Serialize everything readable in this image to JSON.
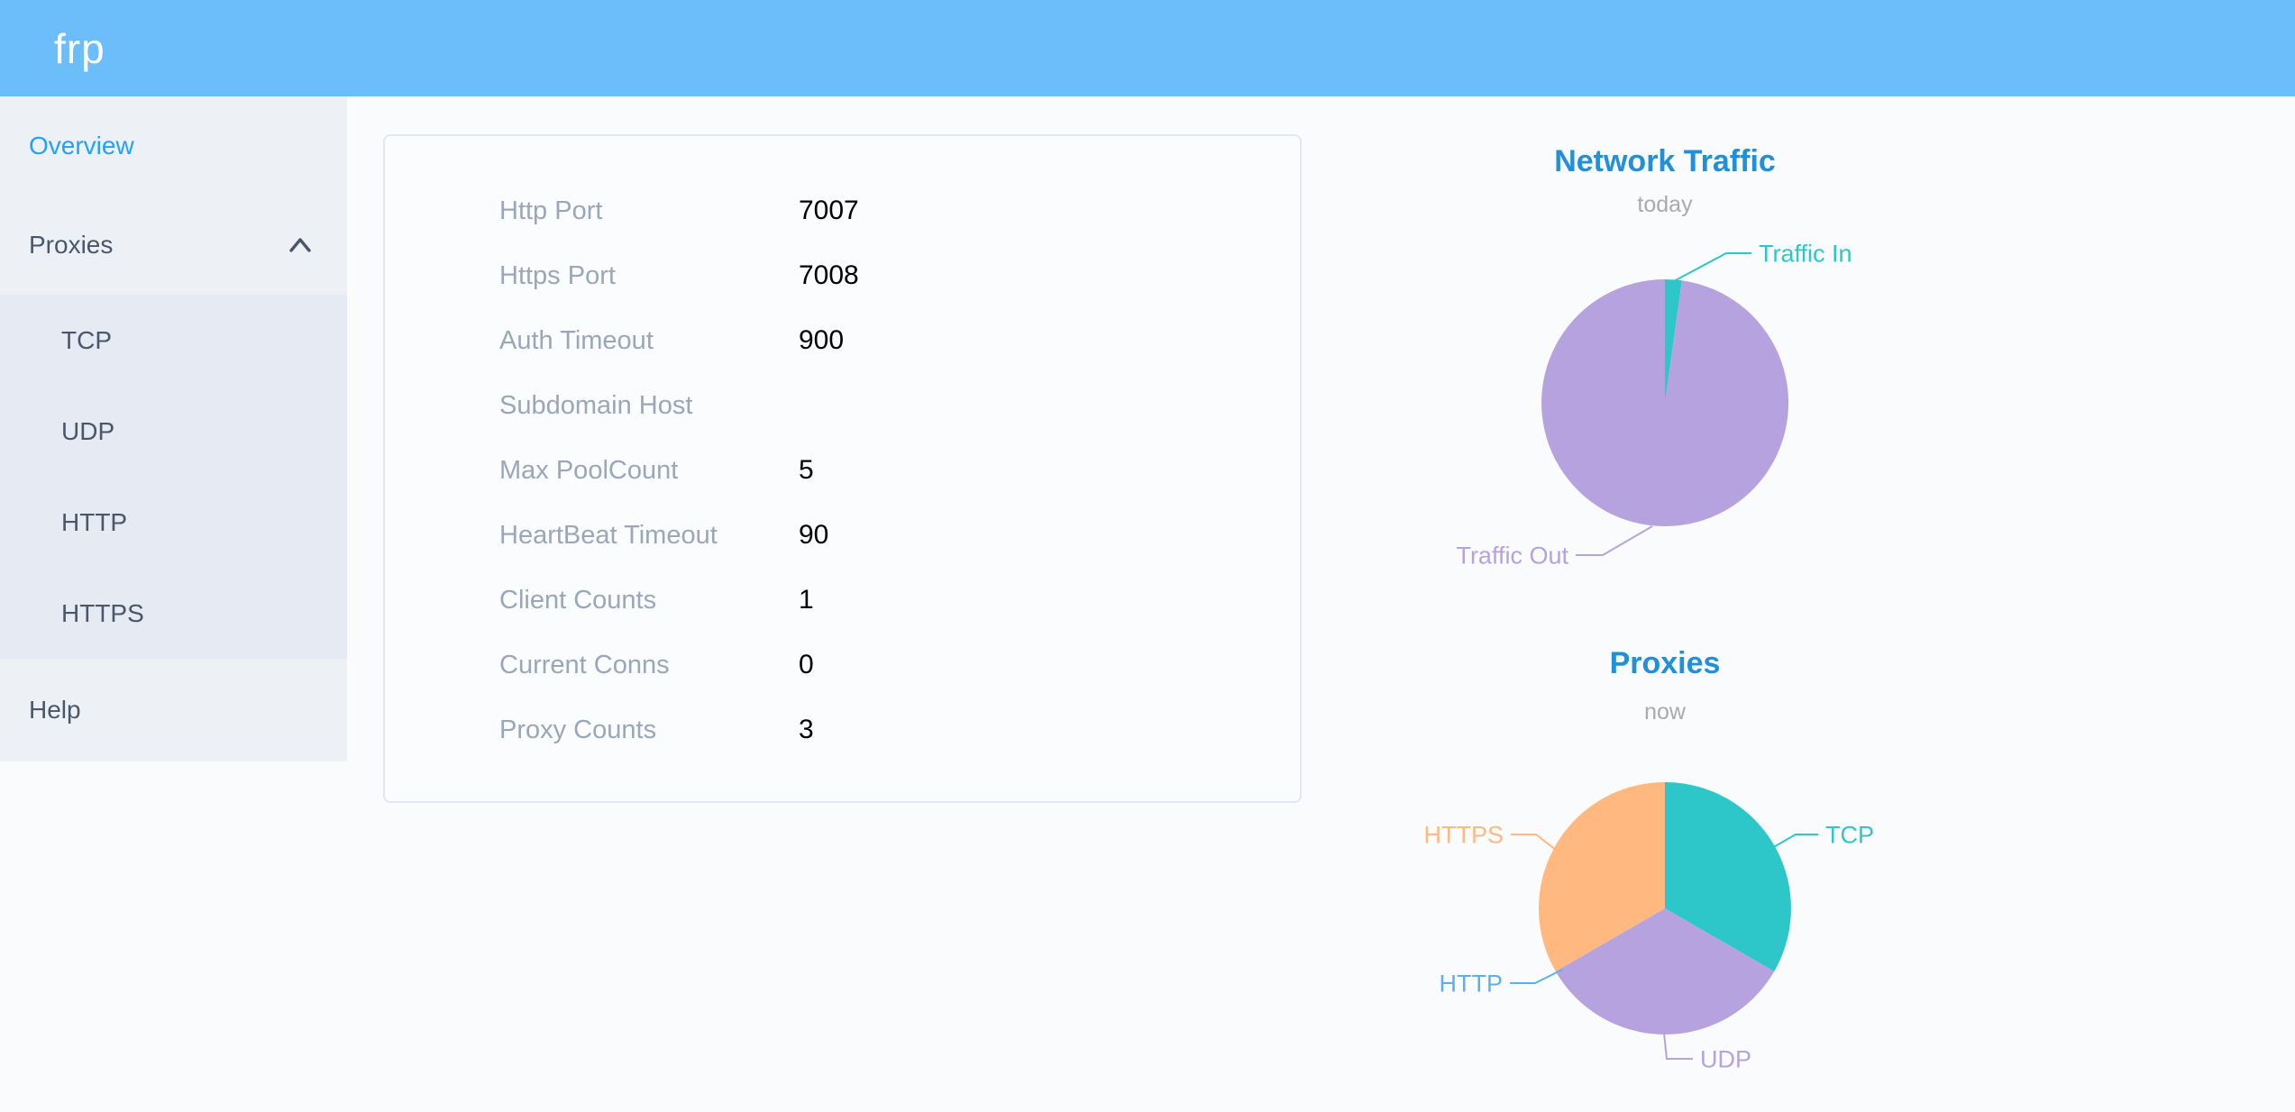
{
  "header": {
    "logo": "frp"
  },
  "sidebar": {
    "items": [
      {
        "label": "Overview",
        "active": true
      },
      {
        "label": "Proxies",
        "expanded": true,
        "children": [
          "TCP",
          "UDP",
          "HTTP",
          "HTTPS"
        ]
      },
      {
        "label": "Help"
      }
    ]
  },
  "overview_panel": {
    "rows": [
      {
        "label": "Http Port",
        "value": "7007"
      },
      {
        "label": "Https Port",
        "value": "7008"
      },
      {
        "label": "Auth Timeout",
        "value": "900"
      },
      {
        "label": "Subdomain Host",
        "value": ""
      },
      {
        "label": "Max PoolCount",
        "value": "5"
      },
      {
        "label": "HeartBeat Timeout",
        "value": "90"
      },
      {
        "label": "Client Counts",
        "value": "1"
      },
      {
        "label": "Current Conns",
        "value": "0"
      },
      {
        "label": "Proxy Counts",
        "value": "3"
      }
    ]
  },
  "chart_data": [
    {
      "type": "pie",
      "title": "Network Traffic",
      "subtitle": "today",
      "legend_position": "callout-labels",
      "slices": [
        {
          "name": "Traffic In",
          "value": 2.2,
          "color": "#2ec7c9"
        },
        {
          "name": "Traffic Out",
          "value": 97.8,
          "color": "#b6a2de"
        }
      ],
      "note": "values are percent shares estimated from slice angles; no numbers shown on screen"
    },
    {
      "type": "pie",
      "title": "Proxies",
      "subtitle": "now",
      "legend_position": "callout-labels",
      "slices": [
        {
          "name": "TCP",
          "value": 1,
          "color": "#2ec7c9"
        },
        {
          "name": "UDP",
          "value": 1,
          "color": "#b6a2de"
        },
        {
          "name": "HTTP",
          "value": 0,
          "color": "#5ab1ef"
        },
        {
          "name": "HTTPS",
          "value": 1,
          "color": "#ffb980"
        }
      ],
      "note": "proportions estimated from pie angles; HTTP slice has zero size"
    }
  ],
  "colors": {
    "header_bg": "#6cbefa",
    "sidebar_bg": "#edf1f6",
    "submenu_bg": "#e6eaf3",
    "sidebar_text": "#48576a",
    "sidebar_active_text": "#20a0ff",
    "panel_border": "#e3e7f5",
    "panel_label": "#9aa6b9",
    "panel_value": "#000000",
    "chart_title": "#2190d9",
    "chart_subtitle": "#aaaaaa"
  }
}
